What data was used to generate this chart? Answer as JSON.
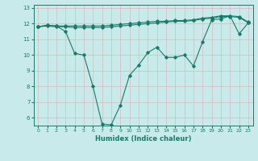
{
  "title": "",
  "xlabel": "Humidex (Indice chaleur)",
  "ylabel": "",
  "background_color": "#c8eaea",
  "grid_color": "#d8b8b8",
  "line_color": "#1a7a6a",
  "xlim": [
    -0.5,
    23.5
  ],
  "ylim": [
    5.5,
    13.2
  ],
  "yticks": [
    6,
    7,
    8,
    9,
    10,
    11,
    12,
    13
  ],
  "xticks": [
    0,
    1,
    2,
    3,
    4,
    5,
    6,
    7,
    8,
    9,
    10,
    11,
    12,
    13,
    14,
    15,
    16,
    17,
    18,
    19,
    20,
    21,
    22,
    23
  ],
  "series1_x": [
    0,
    1,
    2,
    3,
    4,
    5,
    6,
    7,
    8,
    9,
    10,
    11,
    12,
    13,
    14,
    15,
    16,
    17,
    18,
    19,
    20,
    21,
    22,
    23
  ],
  "series1_y": [
    11.8,
    11.9,
    11.85,
    11.85,
    11.85,
    11.85,
    11.85,
    11.85,
    11.9,
    11.95,
    12.0,
    12.05,
    12.1,
    12.15,
    12.15,
    12.2,
    12.2,
    12.25,
    12.35,
    12.4,
    12.5,
    12.5,
    12.45,
    12.1
  ],
  "series2_x": [
    0,
    1,
    2,
    3,
    4,
    5,
    6,
    7,
    8,
    9,
    10,
    11,
    12,
    13,
    14,
    15,
    16,
    17,
    18,
    19,
    20,
    21,
    22,
    23
  ],
  "series2_y": [
    11.8,
    11.85,
    11.8,
    11.8,
    11.75,
    11.75,
    11.75,
    11.75,
    11.8,
    11.85,
    11.9,
    11.95,
    12.0,
    12.05,
    12.1,
    12.15,
    12.15,
    12.2,
    12.3,
    12.35,
    12.45,
    12.45,
    12.4,
    12.05
  ],
  "series3_x": [
    0,
    1,
    2,
    3,
    4,
    5,
    6,
    7,
    8,
    9,
    10,
    11,
    12,
    13,
    14,
    15,
    16,
    17,
    18,
    19,
    20,
    21,
    22,
    23
  ],
  "series3_y": [
    11.8,
    11.9,
    11.85,
    11.5,
    10.1,
    10.0,
    8.0,
    5.6,
    5.55,
    6.8,
    8.7,
    9.35,
    10.15,
    10.5,
    9.85,
    9.85,
    10.0,
    9.3,
    10.85,
    12.25,
    12.3,
    12.5,
    11.35,
    12.05
  ],
  "marker_size": 1.8,
  "line_width": 0.8
}
